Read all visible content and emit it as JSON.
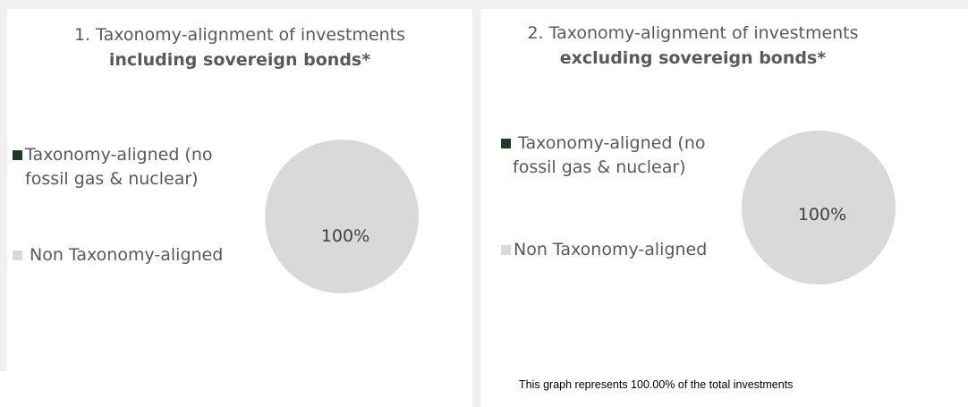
{
  "chart_data": [
    {
      "type": "pie",
      "title_line1": "1. Taxonomy-alignment of investments",
      "title_line2": "including sovereign bonds*",
      "legend": [
        {
          "label_line1": "Taxonomy-aligned (no",
          "label_line2": "fossil gas & nuclear)",
          "color": "#1a3d1f"
        },
        {
          "label_line1": "Non Taxonomy-aligned",
          "label_line2": "",
          "color": "#d9d9d9"
        }
      ],
      "slices": [
        {
          "category": "Taxonomy-aligned (no fossil gas & nuclear)",
          "value": 0,
          "color": "#1a3d1f"
        },
        {
          "category": "Non Taxonomy-aligned",
          "value": 100,
          "color": "#d9d9d9",
          "label": "100%"
        }
      ]
    },
    {
      "type": "pie",
      "title_line1": "2. Taxonomy-alignment of investments",
      "title_line2": "excluding sovereign bonds*",
      "legend": [
        {
          "label_line1": "Taxonomy-aligned (no",
          "label_line2": "fossil gas & nuclear)",
          "color": "#1a3d1f"
        },
        {
          "label_line1": "Non Taxonomy-aligned",
          "label_line2": "",
          "color": "#d9d9d9"
        }
      ],
      "slices": [
        {
          "category": "Taxonomy-aligned (no fossil gas & nuclear)",
          "value": 0,
          "color": "#1a3d1f"
        },
        {
          "category": "Non Taxonomy-aligned",
          "value": 100,
          "color": "#d9d9d9",
          "label": "100%"
        }
      ],
      "footnote": "This graph represents 100.00% of the total investments"
    }
  ]
}
